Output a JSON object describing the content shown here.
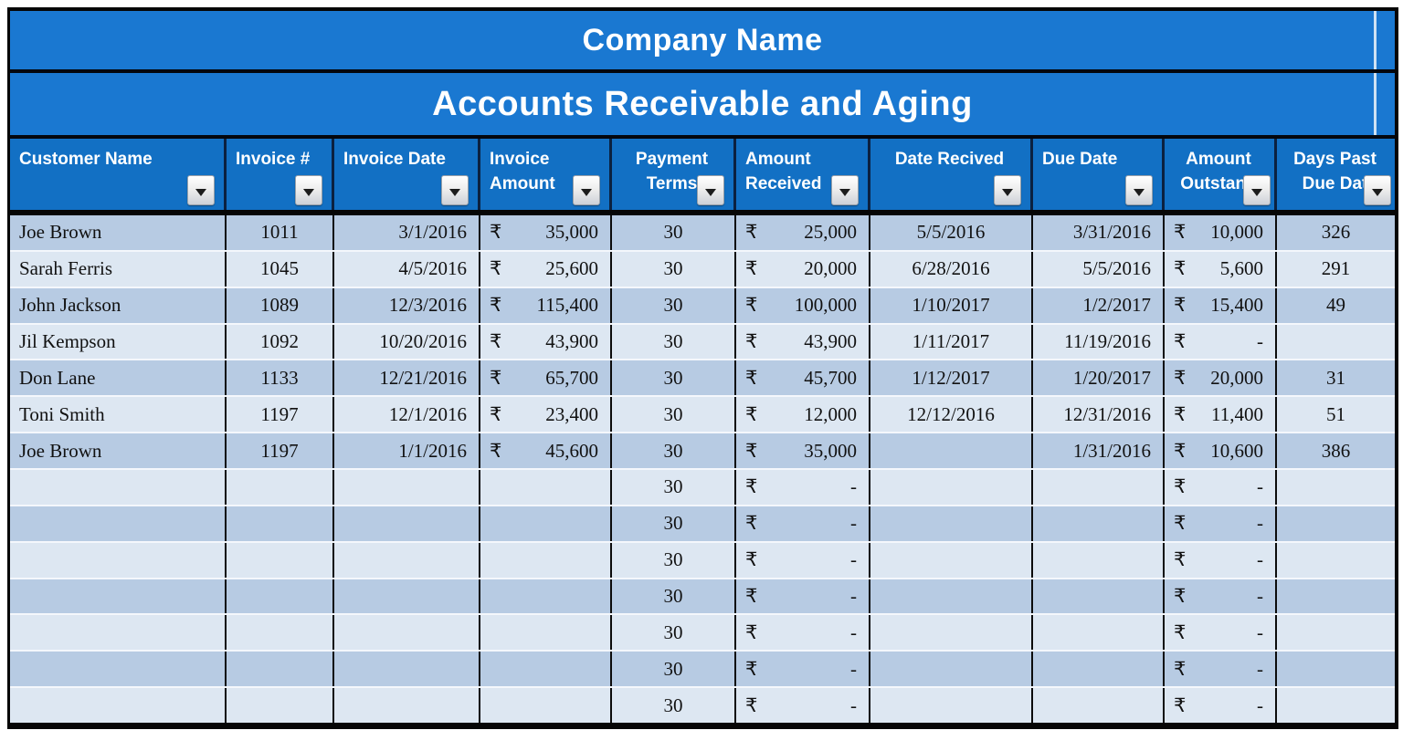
{
  "titles": {
    "company": "Company Name",
    "report": "Accounts Receivable and Aging"
  },
  "colors": {
    "title_blue": "#1a78d1",
    "header_blue": "#1270c4",
    "header_cell_divider": "#0b2140",
    "row_band_dark": "#b7cbe3",
    "row_band_light": "#dde7f2",
    "grid_border": "#0c0c0c",
    "header_text": "#ffffff",
    "data_text": "#111111"
  },
  "currency_symbol": "₹",
  "icons": {
    "filter_dropdown": "dropdown-arrow-icon"
  },
  "table": {
    "columns": [
      {
        "key": "customer-name",
        "lines": [
          "Customer Name"
        ],
        "header_align": "left",
        "cell_align": "left"
      },
      {
        "key": "invoice-number",
        "lines": [
          "Invoice #"
        ],
        "header_align": "left",
        "cell_align": "center"
      },
      {
        "key": "invoice-date",
        "lines": [
          "Invoice Date"
        ],
        "header_align": "left",
        "cell_align": "right"
      },
      {
        "key": "invoice-amount",
        "lines": [
          "Invoice",
          "Amount"
        ],
        "header_align": "left",
        "cell_align": "money"
      },
      {
        "key": "payment-terms",
        "lines": [
          "Payment",
          "Terms"
        ],
        "header_align": "center",
        "cell_align": "center"
      },
      {
        "key": "amount-received",
        "lines": [
          "Amount",
          "Received"
        ],
        "header_align": "left",
        "cell_align": "money"
      },
      {
        "key": "date-recived",
        "lines": [
          "Date Recived"
        ],
        "header_align": "center",
        "cell_align": "center"
      },
      {
        "key": "due-date",
        "lines": [
          "Due Date"
        ],
        "header_align": "left",
        "cell_align": "right"
      },
      {
        "key": "amount-outstanding",
        "lines": [
          "Amount",
          "Outstand"
        ],
        "header_align": "center",
        "cell_align": "money",
        "button_tight": true
      },
      {
        "key": "days-past-due-date",
        "lines": [
          "Days Past",
          "Due Dat"
        ],
        "header_align": "center",
        "cell_align": "center",
        "button_tight": true
      }
    ],
    "money_columns": [
      3,
      5,
      8
    ],
    "rows": [
      [
        "Joe Brown",
        "1011",
        "3/1/2016",
        "35,000",
        "30",
        "25,000",
        "5/5/2016",
        "3/31/2016",
        "10,000",
        "326"
      ],
      [
        "Sarah Ferris",
        "1045",
        "4/5/2016",
        "25,600",
        "30",
        "20,000",
        "6/28/2016",
        "5/5/2016",
        "5,600",
        "291"
      ],
      [
        "John Jackson",
        "1089",
        "12/3/2016",
        "115,400",
        "30",
        "100,000",
        "1/10/2017",
        "1/2/2017",
        "15,400",
        "49"
      ],
      [
        "Jil Kempson",
        "1092",
        "10/20/2016",
        "43,900",
        "30",
        "43,900",
        "1/11/2017",
        "11/19/2016",
        "-",
        ""
      ],
      [
        "Don Lane",
        "1133",
        "12/21/2016",
        "65,700",
        "30",
        "45,700",
        "1/12/2017",
        "1/20/2017",
        "20,000",
        "31"
      ],
      [
        "Toni Smith",
        "1197",
        "12/1/2016",
        "23,400",
        "30",
        "12,000",
        "12/12/2016",
        "12/31/2016",
        "11,400",
        "51"
      ],
      [
        "Joe Brown",
        "1197",
        "1/1/2016",
        "45,600",
        "30",
        "35,000",
        "",
        "1/31/2016",
        "10,600",
        "386"
      ],
      [
        "",
        "",
        "",
        "",
        "30",
        "-",
        "",
        "",
        "-",
        ""
      ],
      [
        "",
        "",
        "",
        "",
        "30",
        "-",
        "",
        "",
        "-",
        ""
      ],
      [
        "",
        "",
        "",
        "",
        "30",
        "-",
        "",
        "",
        "-",
        ""
      ],
      [
        "",
        "",
        "",
        "",
        "30",
        "-",
        "",
        "",
        "-",
        ""
      ],
      [
        "",
        "",
        "",
        "",
        "30",
        "-",
        "",
        "",
        "-",
        ""
      ],
      [
        "",
        "",
        "",
        "",
        "30",
        "-",
        "",
        "",
        "-",
        ""
      ],
      [
        "",
        "",
        "",
        "",
        "30",
        "-",
        "",
        "",
        "-",
        ""
      ]
    ]
  }
}
